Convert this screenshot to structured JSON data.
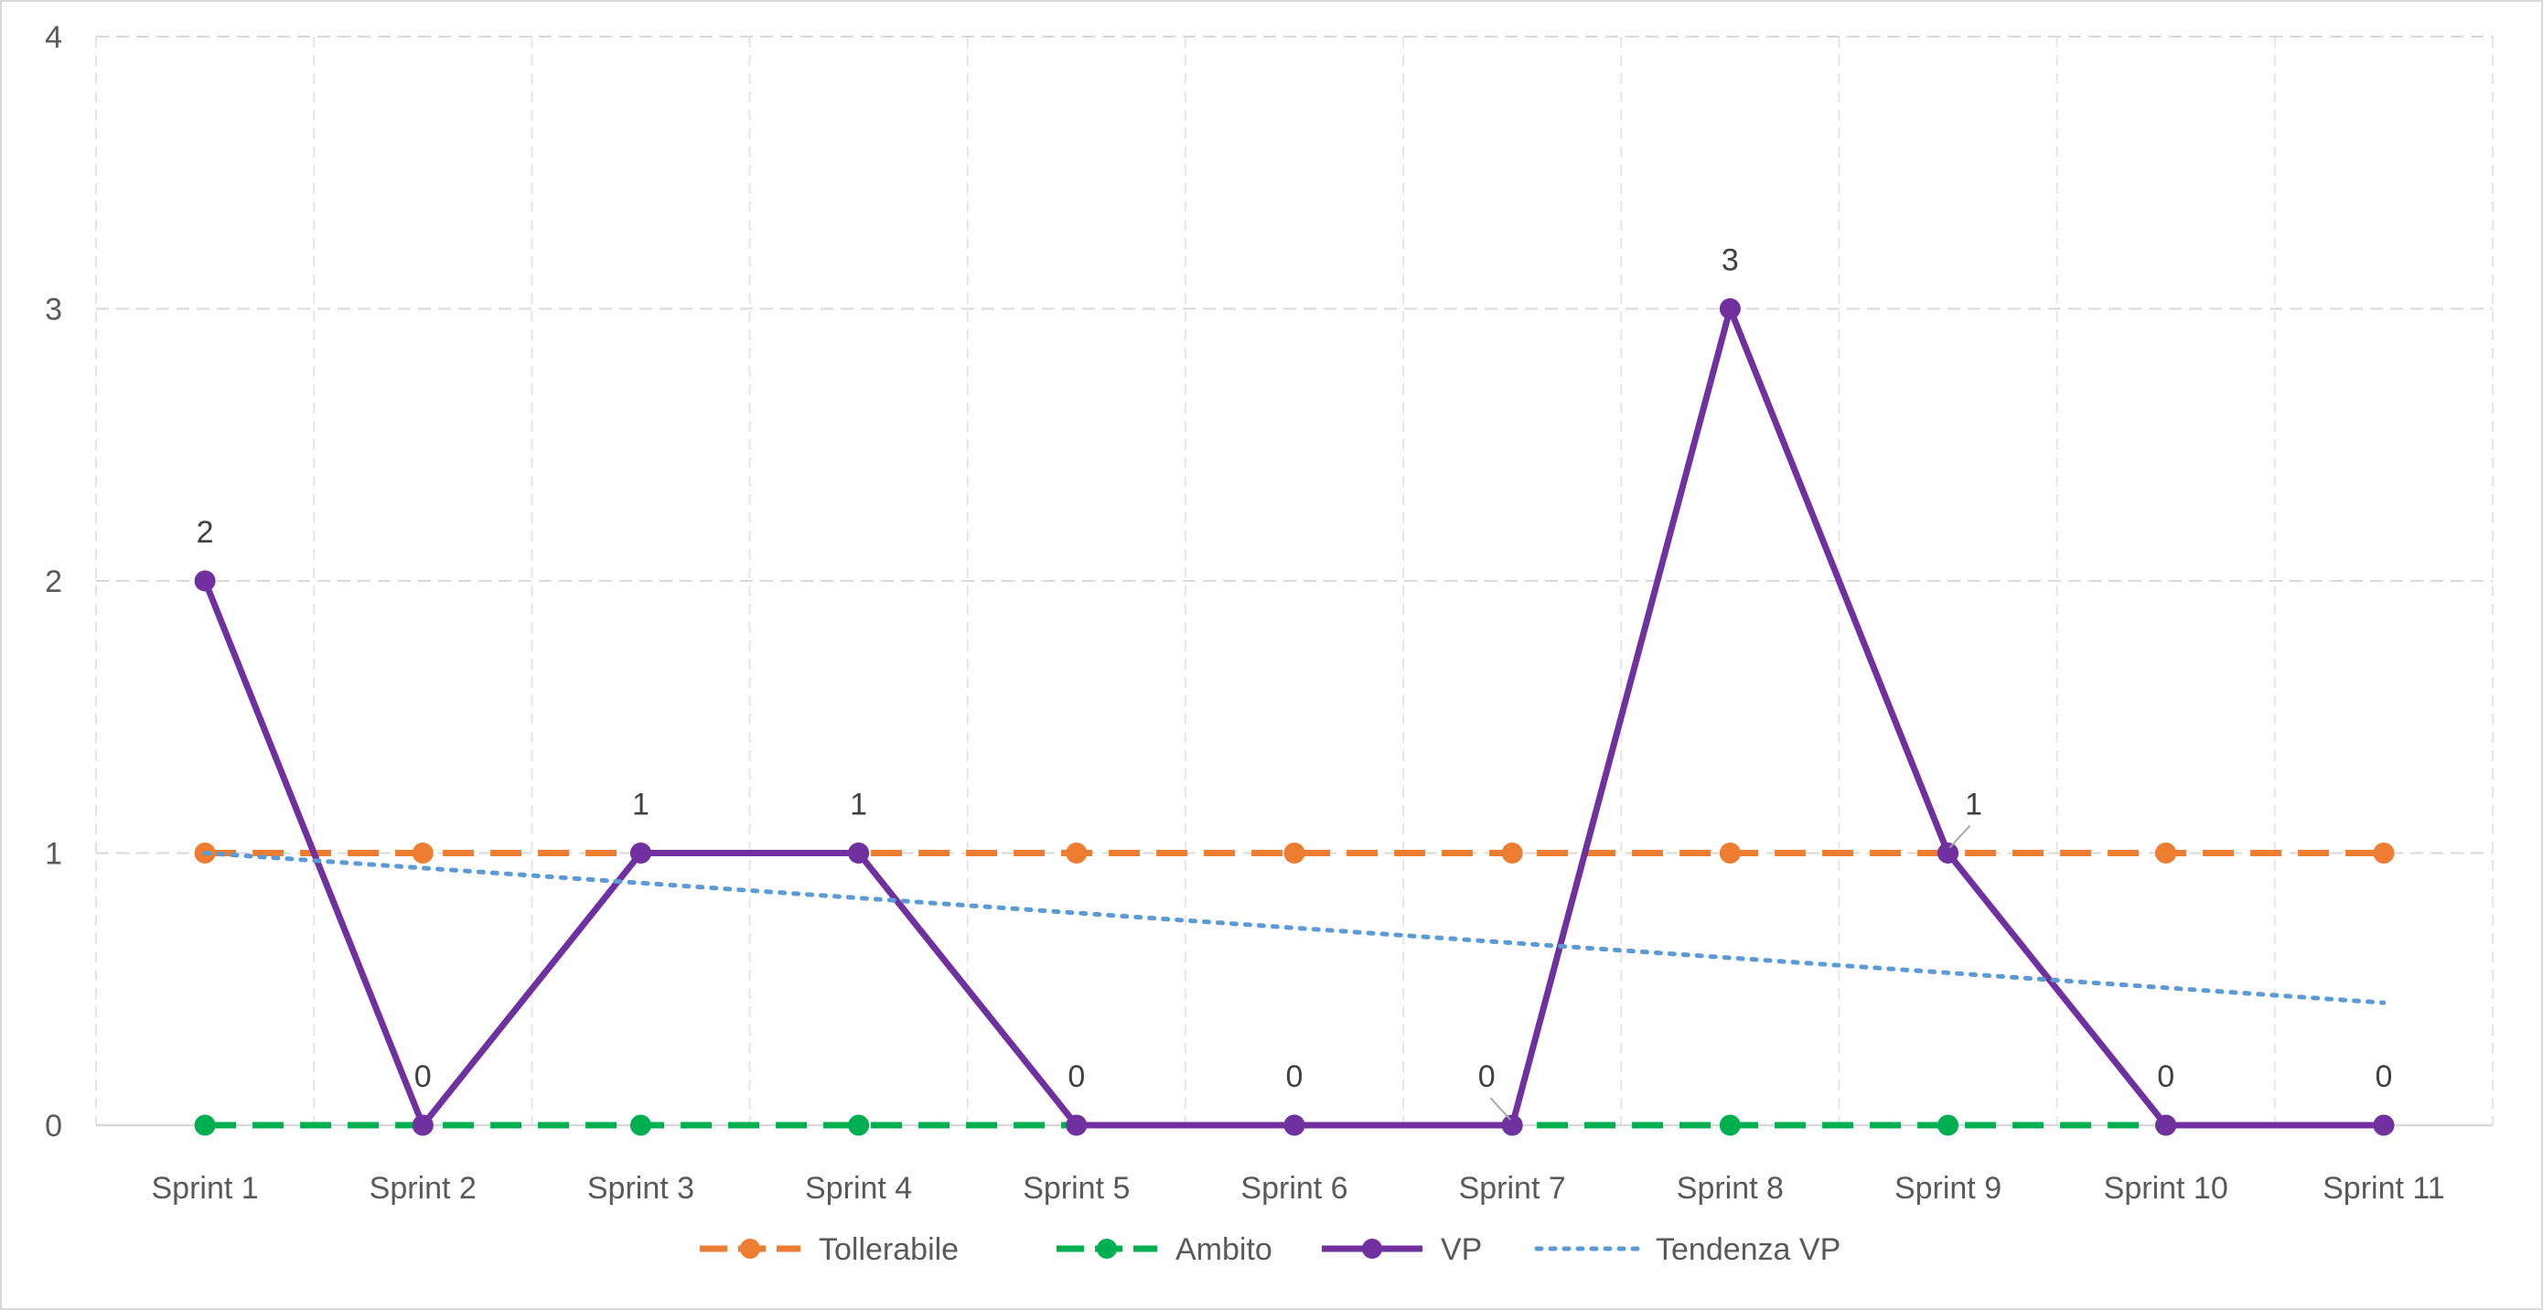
{
  "chart_data": {
    "type": "line",
    "title": "",
    "xlabel": "",
    "ylabel": "",
    "categories": [
      "Sprint 1",
      "Sprint 2",
      "Sprint 3",
      "Sprint 4",
      "Sprint 5",
      "Sprint 6",
      "Sprint 7",
      "Sprint 8",
      "Sprint 9",
      "Sprint 10",
      "Sprint 11"
    ],
    "ylim": [
      0,
      4
    ],
    "yticks": [
      "0",
      "1",
      "2",
      "3",
      "4"
    ],
    "grid": true,
    "legend_position": "bottom",
    "series": [
      {
        "name": "Tollerabile",
        "values": [
          1,
          1,
          1,
          1,
          1,
          1,
          1,
          1,
          1,
          1,
          1
        ],
        "color": "#ed7d31",
        "line_style": "dashed",
        "markers": true
      },
      {
        "name": "Ambito",
        "values": [
          0,
          0,
          0,
          0,
          0,
          0,
          0,
          0,
          0,
          0,
          0
        ],
        "color": "#00b050",
        "line_style": "dashed",
        "markers": true
      },
      {
        "name": "VP",
        "values": [
          2,
          0,
          1,
          1,
          0,
          0,
          0,
          3,
          1,
          0,
          0
        ],
        "data_labels": [
          "2",
          "0",
          "1",
          "1",
          "0",
          "0",
          "0",
          "3",
          "1",
          "0",
          "0"
        ],
        "color": "#7030a0",
        "line_style": "solid",
        "markers": true
      },
      {
        "name": "Tendenza VP",
        "values": [
          1.0,
          0.945,
          0.89,
          0.835,
          0.78,
          0.725,
          0.67,
          0.615,
          0.56,
          0.505,
          0.45
        ],
        "color": "#5b9bd5",
        "line_style": "dotted",
        "markers": false
      }
    ]
  }
}
